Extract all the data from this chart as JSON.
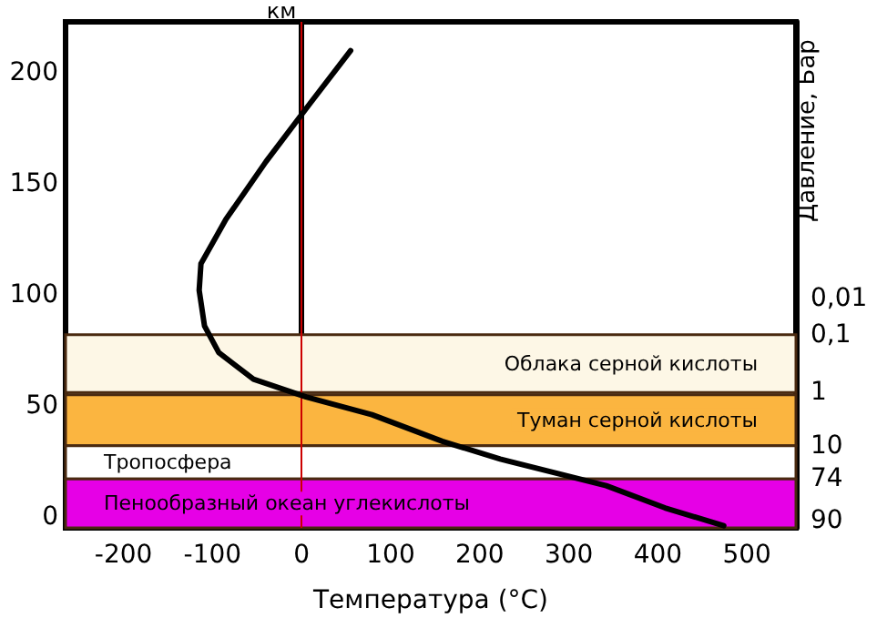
{
  "chart_data": {
    "type": "line",
    "xlabel": "Температура (°C)",
    "ylabel": "км",
    "y2label": "Давление, Бар",
    "xlim": [
      -265,
      555
    ],
    "xticks": [
      -200,
      -100,
      0,
      100,
      200,
      300,
      400,
      500
    ],
    "ylim": [
      -5,
      223
    ],
    "yticks": [
      0,
      50,
      100,
      150,
      200
    ],
    "grid": false,
    "marker": "none",
    "line_style": "solid",
    "series": [
      {
        "color": "#000000",
        "x": [
          55,
          9,
          -40,
          -85,
          -113,
          -115,
          -109,
          -93,
          -54,
          5,
          79,
          158,
          223,
          342,
          408,
          474
        ],
        "values": [
          210,
          186,
          160,
          134,
          114,
          102,
          86,
          74,
          62,
          54,
          46,
          34,
          26,
          14,
          4,
          -4
        ]
      }
    ],
    "bands": [
      {
        "axis": "y",
        "from": 56,
        "to": 82,
        "label": "Облака серной кислоты",
        "color": "#fdf7e6"
      },
      {
        "axis": "y",
        "from": 32,
        "to": 55,
        "label": "Туман серной кислоты",
        "color": "#fbb540"
      },
      {
        "axis": "y",
        "from": 17,
        "to": 32,
        "label": "Тропосфера",
        "color": "#ffffff"
      },
      {
        "axis": "y",
        "from": -5,
        "to": 17,
        "label": "Пенообразный океан углекислоты",
        "color": "#e600e6"
      }
    ],
    "ref_lines": [
      {
        "axis": "x",
        "value": 0,
        "color": "#cc0000"
      }
    ],
    "annotations": [
      "0,01",
      "0,1",
      "1",
      "10",
      "74",
      "90"
    ]
  }
}
